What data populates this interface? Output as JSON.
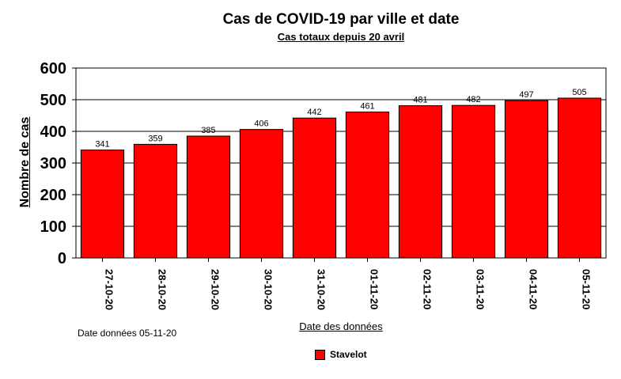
{
  "chart_data": {
    "type": "bar",
    "title": "Cas de COVID-19 par ville et date",
    "subtitle": "Cas totaux depuis 20 avril",
    "xlabel": "Date des données",
    "ylabel": "Nombre de cas",
    "categories": [
      "27-10-20",
      "28-10-20",
      "29-10-20",
      "30-10-20",
      "31-10-20",
      "01-11-20",
      "02-11-20",
      "03-11-20",
      "04-11-20",
      "05-11-20"
    ],
    "series": [
      {
        "name": "Stavelot",
        "values": [
          341,
          359,
          385,
          406,
          442,
          461,
          481,
          482,
          497,
          505
        ],
        "color": "#ff0000"
      }
    ],
    "ylim": [
      0,
      600
    ],
    "yticks": [
      0,
      100,
      200,
      300,
      400,
      500,
      600
    ],
    "grid": true,
    "legend_position": "bottom"
  },
  "note": "Date données  05-11-20"
}
